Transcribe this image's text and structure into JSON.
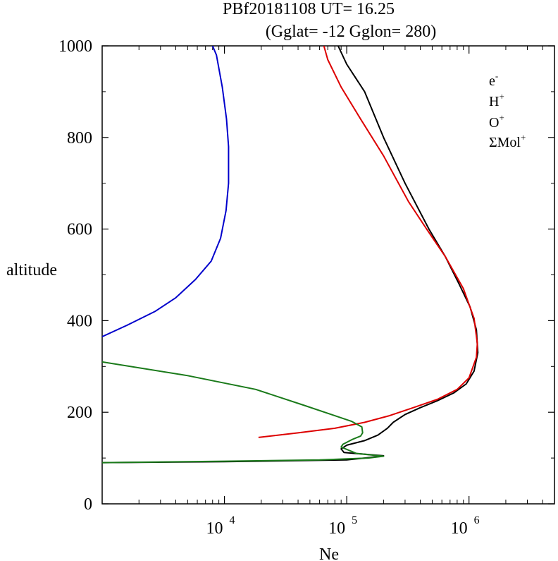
{
  "chart_data": {
    "type": "line",
    "title": "PBf20181108   UT=  16.25",
    "subtitle": "(Gglat= -12   Gglon=  280)",
    "xlabel": "Ne",
    "ylabel": "altitude",
    "xscale": "log",
    "xlim": [
      1000,
      5000000
    ],
    "ylim": [
      0,
      1000
    ],
    "x_ticks": [
      {
        "base": "10",
        "exp": "4",
        "value": 10000
      },
      {
        "base": "10",
        "exp": "5",
        "value": 100000
      },
      {
        "base": "10",
        "exp": "6",
        "value": 1000000
      }
    ],
    "y_ticks": [
      "0",
      "200",
      "400",
      "600",
      "800",
      "1000"
    ],
    "y_tick_values": [
      0,
      200,
      400,
      600,
      800,
      1000
    ],
    "legend_position": "top-right",
    "grid": false,
    "series": [
      {
        "name": "e-",
        "label_base": "e",
        "label_sup": "-",
        "color": "#000000",
        "points": [
          [
            1000,
            90
          ],
          [
            10000,
            92
          ],
          [
            100000,
            96
          ],
          [
            140000,
            100
          ],
          [
            200000,
            105
          ],
          [
            95000,
            112
          ],
          [
            90000,
            120
          ],
          [
            100000,
            128
          ],
          [
            140000,
            138
          ],
          [
            180000,
            150
          ],
          [
            215000,
            165
          ],
          [
            240000,
            178
          ],
          [
            300000,
            195
          ],
          [
            400000,
            210
          ],
          [
            550000,
            225
          ],
          [
            750000,
            242
          ],
          [
            950000,
            262
          ],
          [
            1100000,
            290
          ],
          [
            1180000,
            330
          ],
          [
            1150000,
            380
          ],
          [
            1020000,
            430
          ],
          [
            830000,
            480
          ],
          [
            640000,
            540
          ],
          [
            470000,
            600
          ],
          [
            300000,
            700
          ],
          [
            200000,
            800
          ],
          [
            140000,
            900
          ],
          [
            100000,
            960
          ],
          [
            85000,
            1000
          ]
        ]
      },
      {
        "name": "H+",
        "label_base": "H",
        "label_sup": "+",
        "color": "#0000cc",
        "points": [
          [
            1000,
            365
          ],
          [
            1600,
            390
          ],
          [
            2700,
            420
          ],
          [
            4000,
            450
          ],
          [
            5800,
            490
          ],
          [
            7800,
            530
          ],
          [
            9300,
            580
          ],
          [
            10300,
            640
          ],
          [
            10800,
            700
          ],
          [
            10800,
            780
          ],
          [
            10400,
            840
          ],
          [
            9600,
            910
          ],
          [
            8600,
            980
          ],
          [
            8000,
            1000
          ]
        ]
      },
      {
        "name": "O+",
        "label_base": "O",
        "label_sup": "+",
        "color": "#dd0000",
        "points": [
          [
            19000,
            145
          ],
          [
            40000,
            155
          ],
          [
            80000,
            165
          ],
          [
            140000,
            178
          ],
          [
            220000,
            192
          ],
          [
            350000,
            210
          ],
          [
            550000,
            228
          ],
          [
            800000,
            250
          ],
          [
            1000000,
            275
          ],
          [
            1150000,
            320
          ],
          [
            1170000,
            350
          ],
          [
            1100000,
            405
          ],
          [
            900000,
            470
          ],
          [
            640000,
            540
          ],
          [
            450000,
            600
          ],
          [
            320000,
            660
          ],
          [
            200000,
            760
          ],
          [
            130000,
            840
          ],
          [
            90000,
            910
          ],
          [
            70000,
            970
          ],
          [
            65000,
            1000
          ]
        ]
      },
      {
        "name": "ΣMol+",
        "label_base": "ΣMol",
        "label_sup": "+",
        "color": "#1a7a1a",
        "points": [
          [
            1000,
            310
          ],
          [
            5000,
            280
          ],
          [
            18000,
            250
          ],
          [
            45000,
            215
          ],
          [
            75000,
            195
          ],
          [
            110000,
            180
          ],
          [
            133000,
            168
          ],
          [
            135000,
            155
          ],
          [
            130000,
            148
          ],
          [
            110000,
            140
          ],
          [
            93000,
            130
          ],
          [
            90000,
            124
          ],
          [
            120000,
            110
          ],
          [
            200000,
            104
          ],
          [
            150000,
            100
          ],
          [
            60000,
            96
          ],
          [
            10000,
            93
          ],
          [
            1000,
            90
          ]
        ]
      }
    ]
  }
}
